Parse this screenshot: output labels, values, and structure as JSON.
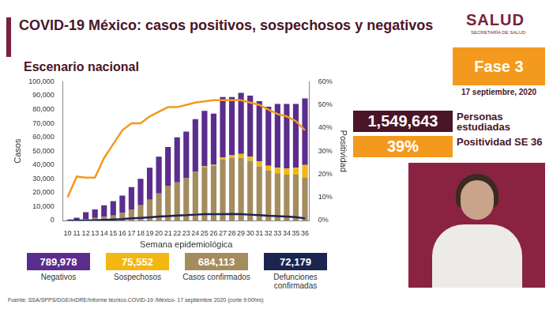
{
  "header": {
    "title": "COVID-19 México: casos positivos, sospechosos y negativos",
    "subtitle": "Escenario nacional",
    "logo": "SALUD",
    "logo_subtitle": "SECRETARÍA DE SALUD"
  },
  "panel": {
    "phase": "Fase 3",
    "date": "17 septiembre, 2020",
    "studied": {
      "value": "1,549,643",
      "label": "Personas estudiadas"
    },
    "positivity": {
      "value": "39%",
      "label": "Positividad SE 36"
    }
  },
  "totals": [
    {
      "value": "789,978",
      "label": "Negativos",
      "color": "#5b2d8e"
    },
    {
      "value": "75,552",
      "label": "Sospechosos",
      "color": "#f2b712"
    },
    {
      "value": "684,113",
      "label": "Casos confirmados",
      "color": "#a48c5e"
    },
    {
      "value": "72,179",
      "label": "Defunciones confirmadas",
      "color": "#1a2550"
    }
  ],
  "source": "Fuente: SSA/SPPS/DGE/InDRE/Informe técnico.COVID-19 /México- 17 septiembre 2020 (corte 9:00hrs)",
  "chart_data": {
    "type": "bar",
    "stacked": true,
    "grid": false,
    "xlabel": "Semana epidemiológica",
    "ylabel": "Casos",
    "y2label": "Positividad",
    "categories": [
      "10",
      "11",
      "12",
      "13",
      "14",
      "15",
      "16",
      "17",
      "18",
      "19",
      "20",
      "21",
      "22",
      "23",
      "24",
      "25",
      "26",
      "27",
      "28",
      "29",
      "30",
      "31",
      "32",
      "33",
      "34",
      "35",
      "36"
    ],
    "ylim": [
      0,
      100000
    ],
    "yticks": [
      0,
      {
        "value": 10000,
        "label": "10,000"
      },
      {
        "value": 20000,
        "label": "20,000"
      },
      {
        "value": 30000,
        "label": "30,000"
      },
      {
        "value": 40000,
        "label": "40,000"
      },
      {
        "value": 50000,
        "label": "50,000"
      },
      {
        "value": 60000,
        "label": "60,000"
      },
      {
        "value": 70000,
        "label": "70,000"
      },
      {
        "value": 80000,
        "label": "80,000"
      },
      {
        "value": 90000,
        "label": "90,000"
      },
      {
        "value": 100000,
        "label": "100,000"
      }
    ],
    "y2lim": [
      0,
      60
    ],
    "y2ticks": [
      {
        "value": 0,
        "label": "0%"
      },
      {
        "value": 10,
        "label": "10%"
      },
      {
        "value": 20,
        "label": "20%"
      },
      {
        "value": 30,
        "label": "30%"
      },
      {
        "value": 40,
        "label": "40%"
      },
      {
        "value": 50,
        "label": "50%"
      },
      {
        "value": 60,
        "label": "60%"
      }
    ],
    "series": [
      {
        "name": "Casos confirmados",
        "type": "bar",
        "color": "#a48c5e",
        "values": [
          50,
          300,
          1000,
          1800,
          2700,
          3500,
          5500,
          8000,
          11000,
          15000,
          19500,
          25000,
          27500,
          30500,
          35000,
          38500,
          39500,
          44000,
          45000,
          45000,
          43000,
          39000,
          36000,
          34000,
          33000,
          33000,
          31000
        ]
      },
      {
        "name": "Sospechosos",
        "type": "bar",
        "color": "#f2b712",
        "values": [
          0,
          0,
          0,
          0,
          0,
          0,
          0,
          0,
          0,
          0,
          0,
          0,
          0,
          0,
          0,
          500,
          700,
          1500,
          2000,
          3000,
          3000,
          3500,
          3500,
          4000,
          4500,
          5000,
          9000
        ]
      },
      {
        "name": "Negativos",
        "type": "bar",
        "color": "#5b2d8e",
        "values": [
          150,
          1700,
          5000,
          6200,
          8300,
          10500,
          12500,
          16000,
          19000,
          23000,
          26500,
          28000,
          32500,
          33500,
          38000,
          40000,
          36800,
          43500,
          42000,
          44000,
          44000,
          43500,
          42500,
          46000,
          46500,
          46000,
          48000
        ]
      },
      {
        "name": "Defunciones confirmadas",
        "type": "line",
        "color": "#1a2550",
        "values": [
          0,
          0,
          50,
          200,
          400,
          700,
          1000,
          1500,
          1900,
          2300,
          2800,
          3200,
          3600,
          3800,
          4200,
          4500,
          4500,
          4600,
          4700,
          4500,
          4200,
          3800,
          3400,
          3200,
          2900,
          2400,
          1500
        ]
      },
      {
        "name": "Positividad",
        "type": "line",
        "axis": "y2",
        "color": "#f39a1e",
        "values": [
          10,
          19,
          18.5,
          18.5,
          27,
          33,
          39,
          42,
          42,
          45,
          47,
          49,
          49,
          50,
          51,
          51.5,
          52,
          52,
          52,
          52,
          51,
          50,
          48,
          46,
          45,
          43,
          39
        ]
      }
    ]
  }
}
